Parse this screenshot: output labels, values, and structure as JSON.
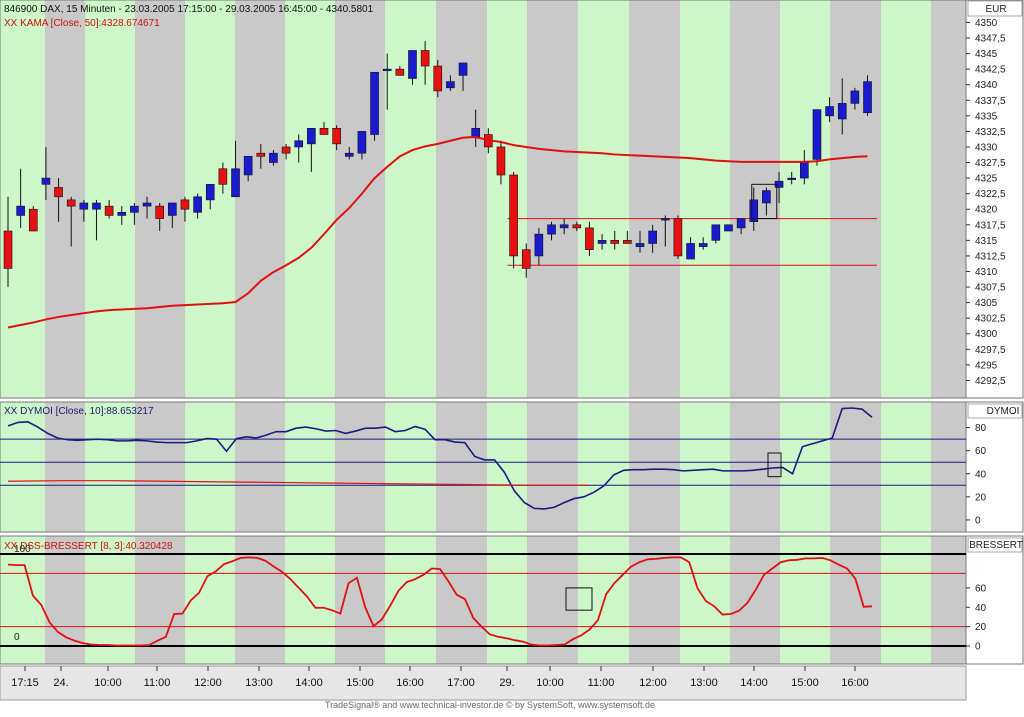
{
  "header": {
    "main": "846900  DAX, 15 Minuten - 23.03.2005 17:15:00 - 29.03.2005 16:45:00 - 4340.5801",
    "kama": "XX KAMA [Close, 50]:4328.674671"
  },
  "panels": {
    "price_label": "EUR",
    "dymoi_title": "XX DYMOI [Close, 10]:88.653217",
    "dymoi_label": "DYMOI",
    "dss_title": "XX DSS-BRESSERT [8, 3]:40.320428",
    "dss_label": "BRESSERT"
  },
  "footer": "TradeSignal® and www.technical-investor.de © by SystemSoft, www.systemsoft.de",
  "colors": {
    "up_candle": "#1a1ad0",
    "down_candle": "#e81010",
    "kama": "#e01010",
    "dymoi": "#1a1a80",
    "dss": "#e01010",
    "green_band": "#cdf7c8",
    "gray_band": "#c9c9c9"
  },
  "chart_data": [
    {
      "type": "candlestick",
      "name": "DAX 15 Minuten",
      "ylim": [
        4290,
        4352
      ],
      "yticks": [
        4292.5,
        4295,
        4297.5,
        4300,
        4302.5,
        4305,
        4307.5,
        4310,
        4312.5,
        4315,
        4317.5,
        4320,
        4322.5,
        4325,
        4327.5,
        4330,
        4332.5,
        4335,
        4337.5,
        4340,
        4342.5,
        4345,
        4347.5,
        4350
      ],
      "xticks": [
        "17:15",
        "24.",
        "10:00",
        "11:00",
        "12:00",
        "13:00",
        "14:00",
        "15:00",
        "16:00",
        "17:00",
        "29.",
        "10:00",
        "11:00",
        "12:00",
        "13:00",
        "14:00",
        "15:00",
        "16:00"
      ],
      "candles": [
        [
          4316.5,
          4322.0,
          4307.5,
          4310.5
        ],
        [
          4319.0,
          4326.5,
          4317.0,
          4320.5
        ],
        [
          4320.0,
          4320.5,
          4317.0,
          4316.5
        ],
        [
          4324.0,
          4330.0,
          4321.5,
          4325.0
        ],
        [
          4323.5,
          4325.0,
          4318.0,
          4322.0
        ],
        [
          4321.5,
          4322.0,
          4314.0,
          4320.5
        ],
        [
          4320.0,
          4321.5,
          4318.0,
          4321.0
        ],
        [
          4320.0,
          4321.5,
          4315.0,
          4321.0
        ],
        [
          4320.5,
          4321.5,
          4318.5,
          4319.0
        ],
        [
          4319.0,
          4320.5,
          4317.5,
          4319.5
        ],
        [
          4319.5,
          4321.0,
          4317.5,
          4320.5
        ],
        [
          4320.5,
          4322.0,
          4318.5,
          4321.0
        ],
        [
          4320.5,
          4321.0,
          4316.5,
          4318.5
        ],
        [
          4319.0,
          4321.0,
          4317.0,
          4321.0
        ],
        [
          4321.5,
          4322.0,
          4318.0,
          4320.0
        ],
        [
          4319.5,
          4322.5,
          4318.5,
          4322.0
        ],
        [
          4321.5,
          4324.0,
          4320.0,
          4324.0
        ],
        [
          4326.5,
          4327.5,
          4322.5,
          4324.0
        ],
        [
          4322.0,
          4331.0,
          4322.5,
          4326.5
        ],
        [
          4325.5,
          4328.0,
          4324.5,
          4328.5
        ],
        [
          4329.0,
          4330.5,
          4326.5,
          4328.5
        ],
        [
          4327.5,
          4329.5,
          4327.0,
          4329.0
        ],
        [
          4330.0,
          4330.5,
          4328.0,
          4329.0
        ],
        [
          4330.0,
          4332.0,
          4327.5,
          4331.0
        ],
        [
          4330.5,
          4333.0,
          4326.0,
          4333.0
        ],
        [
          4333.0,
          4334.0,
          4332.0,
          4332.0
        ],
        [
          4333.0,
          4333.5,
          4329.5,
          4330.5
        ],
        [
          4328.5,
          4330.0,
          4328.0,
          4329.0
        ],
        [
          4329.0,
          4332.0,
          4328.0,
          4332.5
        ],
        [
          4332.0,
          4342.0,
          4331.0,
          4342.0
        ],
        [
          4342.5,
          4345.0,
          4336.0,
          4342.5
        ],
        [
          4342.5,
          4343.0,
          4342.0,
          4341.5
        ],
        [
          4341.0,
          4345.0,
          4340.0,
          4345.5
        ],
        [
          4345.5,
          4347.0,
          4340.0,
          4343.0
        ],
        [
          4343.0,
          4344.0,
          4338.0,
          4339.0
        ],
        [
          4339.5,
          4341.5,
          4339.0,
          4340.5
        ],
        [
          4341.5,
          4343.0,
          4339.0,
          4343.5
        ],
        [
          4331.5,
          4336.0,
          4330.0,
          4333.0
        ],
        [
          4332.0,
          4333.0,
          4329.0,
          4330.0
        ],
        [
          4330.0,
          4331.0,
          4324.0,
          4325.5
        ],
        [
          4325.5,
          4326.0,
          4310.5,
          4312.5
        ],
        [
          4313.5,
          4314.5,
          4309.0,
          4310.5
        ],
        [
          4312.5,
          4317.0,
          4311.0,
          4316.0
        ],
        [
          4316.0,
          4318.0,
          4315.0,
          4317.5
        ],
        [
          4317.0,
          4318.5,
          4316.0,
          4317.5
        ],
        [
          4317.5,
          4318.0,
          4316.5,
          4317.0
        ],
        [
          4317.0,
          4318.0,
          4312.5,
          4313.5
        ],
        [
          4314.5,
          4316.0,
          4313.5,
          4315.0
        ],
        [
          4315.0,
          4316.5,
          4313.5,
          4314.5
        ],
        [
          4315.0,
          4316.5,
          4314.5,
          4314.5
        ],
        [
          4314.0,
          4316.5,
          4313.0,
          4314.5
        ],
        [
          4314.5,
          4317.5,
          4313.0,
          4316.5
        ],
        [
          4318.5,
          4319.0,
          4314.0,
          4318.5
        ],
        [
          4318.5,
          4319.0,
          4312.0,
          4312.5
        ],
        [
          4312.0,
          4315.5,
          4312.0,
          4314.5
        ],
        [
          4314.0,
          4315.5,
          4313.5,
          4314.5
        ],
        [
          4315.0,
          4317.5,
          4314.5,
          4317.5
        ],
        [
          4316.5,
          4317.5,
          4316.5,
          4317.5
        ],
        [
          4317.0,
          4318.5,
          4316.0,
          4318.5
        ],
        [
          4318.0,
          4323.5,
          4316.5,
          4321.5
        ],
        [
          4321.0,
          4323.5,
          4319.0,
          4323.0
        ],
        [
          4323.5,
          4326.0,
          4321.0,
          4324.5
        ],
        [
          4325.0,
          4326.0,
          4324.0,
          4325.0
        ],
        [
          4325.0,
          4329.5,
          4324.0,
          4327.5
        ],
        [
          4328.0,
          4336.0,
          4327.0,
          4336.0
        ],
        [
          4335.0,
          4338.0,
          4334.0,
          4336.5
        ],
        [
          4334.5,
          4341.0,
          4332.0,
          4337.0
        ],
        [
          4337.0,
          4339.5,
          4336.0,
          4339.0
        ],
        [
          4335.5,
          4341.5,
          4335.0,
          4340.5
        ]
      ],
      "kama": [
        4301.0,
        4301.4,
        4301.8,
        4302.3,
        4302.7,
        4303.0,
        4303.3,
        4303.6,
        4303.8,
        4303.9,
        4304.0,
        4304.1,
        4304.3,
        4304.5,
        4304.6,
        4304.7,
        4304.8,
        4304.9,
        4305.1,
        4306.5,
        4308.5,
        4309.9,
        4311.0,
        4312.2,
        4313.8,
        4316.0,
        4318.3,
        4320.2,
        4322.5,
        4325.0,
        4326.8,
        4328.5,
        4329.5,
        4330.1,
        4330.5,
        4331.0,
        4331.5,
        4331.6,
        4331.1,
        4330.8,
        4330.3,
        4330.0,
        4329.7,
        4329.5,
        4329.3,
        4329.2,
        4329.1,
        4329.0,
        4328.8,
        4328.7,
        4328.6,
        4328.5,
        4328.4,
        4328.3,
        4328.2,
        4328.0,
        4327.8,
        4327.7,
        4327.6,
        4327.6,
        4327.6,
        4327.6,
        4327.6,
        4327.6,
        4327.7,
        4328.0,
        4328.2,
        4328.4,
        4328.5
      ],
      "horizontal_lines": [
        4318.5,
        4311.0
      ],
      "marker_box": [
        4318.5,
        4324.0
      ]
    },
    {
      "type": "line",
      "name": "DYMOI",
      "ylim": [
        -7,
        97
      ],
      "yticks": [
        0,
        20,
        40,
        60,
        80
      ],
      "levels": [
        70,
        50,
        30
      ],
      "values": [
        81.5,
        84.5,
        85.0,
        80.5,
        75.0,
        71.0,
        69.5,
        69.0,
        69.5,
        70.0,
        69.5,
        68.5,
        68.5,
        69.0,
        68.5,
        67.5,
        67.0,
        67.0,
        67.0,
        68.5,
        70.5,
        70.0,
        59.5,
        70.5,
        72.0,
        71.0,
        73.5,
        76.5,
        76.5,
        79.5,
        80.5,
        79.0,
        77.0,
        77.5,
        75.0,
        77.0,
        79.5,
        79.5,
        80.5,
        76.5,
        77.5,
        81.0,
        78.5,
        69.5,
        69.5,
        67.5,
        67.0,
        55.0,
        52.0,
        52.0,
        41.0,
        25.0,
        15.0,
        10.0,
        9.5,
        11.0,
        15.0,
        18.5,
        20.0,
        24.0,
        29.5,
        39.0,
        43.0,
        43.5,
        43.5,
        44.0,
        44.0,
        43.5,
        42.5,
        43.0,
        43.5,
        44.0,
        42.5,
        42.5,
        42.5,
        43.0,
        44.0,
        45.0,
        45.5,
        40.0,
        63.5,
        66.0,
        68.5,
        71.0,
        96.5,
        97.0,
        96.0,
        89.0
      ],
      "red_values": [
        33.5,
        34.0,
        34.0,
        33.5,
        33.0,
        32.5,
        32.0,
        31.5,
        31.0,
        30.5,
        30.0,
        30.0
      ],
      "marker_box": [
        37.5,
        58.0
      ]
    },
    {
      "type": "line",
      "name": "DSS-BRESSERT",
      "ylim": [
        -5,
        100
      ],
      "yticks": [
        0,
        20,
        40,
        60
      ],
      "levels_black": [
        95,
        0
      ],
      "levels_red": [
        75,
        20
      ],
      "labels": {
        "top": "100",
        "zero": "0"
      },
      "values": [
        84.0,
        83.5,
        83.5,
        52.0,
        42.5,
        24.5,
        14.5,
        9.0,
        5.5,
        3.0,
        1.5,
        1.0,
        1.0,
        0.5,
        0.5,
        0.5,
        0.5,
        1.0,
        5.5,
        9.5,
        33.0,
        33.5,
        47.0,
        55.0,
        72.0,
        77.0,
        84.5,
        87.5,
        91.0,
        91.5,
        91.0,
        88.0,
        82.0,
        76.5,
        69.0,
        60.0,
        51.0,
        39.5,
        39.5,
        37.0,
        33.5,
        65.0,
        70.5,
        40.0,
        20.5,
        27.5,
        41.5,
        57.0,
        66.0,
        69.0,
        73.5,
        80.0,
        79.5,
        67.0,
        53.0,
        48.5,
        29.0,
        20.0,
        12.0,
        9.5,
        8.0,
        6.0,
        4.5,
        1.5,
        0.5,
        0.5,
        1.0,
        1.5,
        7.0,
        11.0,
        17.0,
        26.5,
        53.5,
        65.0,
        73.5,
        82.0,
        86.5,
        89.5,
        90.0,
        91.0,
        91.5,
        91.5,
        86.5,
        59.5,
        46.5,
        41.0,
        32.5,
        33.0,
        36.5,
        44.5,
        58.0,
        73.5,
        80.0,
        86.5,
        88.5,
        89.0,
        90.5,
        90.5,
        91.0,
        88.5,
        84.0,
        80.0,
        69.5,
        40.5,
        41.0
      ],
      "marker_box": [
        37.0,
        60.0
      ]
    }
  ]
}
